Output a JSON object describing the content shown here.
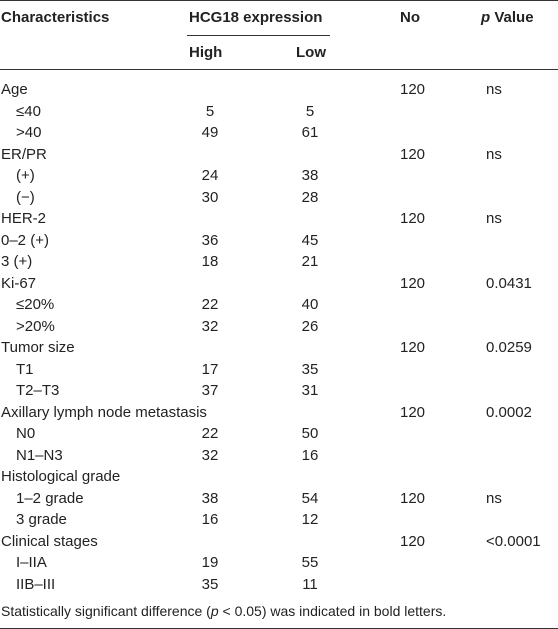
{
  "header": {
    "characteristics": "Characteristics",
    "group": "HCG18 expression",
    "high": "High",
    "low": "Low",
    "no": "No",
    "p_italic": "p",
    "p_rest": " Value"
  },
  "rows": [
    {
      "label": "Age",
      "sub": false,
      "high": "",
      "low": "",
      "no": "120",
      "p": "ns"
    },
    {
      "label": "≤40",
      "sub": true,
      "high": "5",
      "low": "5",
      "no": "",
      "p": ""
    },
    {
      "label": ">40",
      "sub": true,
      "high": "49",
      "low": "61",
      "no": "",
      "p": ""
    },
    {
      "label": "ER/PR",
      "sub": false,
      "high": "",
      "low": "",
      "no": "120",
      "p": "ns"
    },
    {
      "label": "(+)",
      "sub": true,
      "high": "24",
      "low": "38",
      "no": "",
      "p": ""
    },
    {
      "label": "(−)",
      "sub": true,
      "high": "30",
      "low": "28",
      "no": "",
      "p": ""
    },
    {
      "label": "HER-2",
      "sub": false,
      "high": "",
      "low": "",
      "no": "120",
      "p": "ns"
    },
    {
      "label": "0–2 (+)",
      "sub": false,
      "high": "36",
      "low": "45",
      "no": "",
      "p": ""
    },
    {
      "label": "3 (+)",
      "sub": false,
      "high": "18",
      "low": "21",
      "no": "",
      "p": ""
    },
    {
      "label": "Ki-67",
      "sub": false,
      "high": "",
      "low": "",
      "no": "120",
      "p": "0.0431"
    },
    {
      "label": "≤20%",
      "sub": true,
      "high": "22",
      "low": "40",
      "no": "",
      "p": ""
    },
    {
      "label": ">20%",
      "sub": true,
      "high": "32",
      "low": "26",
      "no": "",
      "p": ""
    },
    {
      "label": "Tumor size",
      "sub": false,
      "high": "",
      "low": "",
      "no": "120",
      "p": "0.0259"
    },
    {
      "label": "T1",
      "sub": true,
      "high": "17",
      "low": "35",
      "no": "",
      "p": ""
    },
    {
      "label": "T2–T3",
      "sub": true,
      "high": "37",
      "low": "31",
      "no": "",
      "p": ""
    },
    {
      "label": "Axillary lymph node metastasis",
      "sub": false,
      "high": "",
      "low": "",
      "no": "120",
      "p": "0.0002"
    },
    {
      "label": "N0",
      "sub": true,
      "high": "22",
      "low": "50",
      "no": "",
      "p": ""
    },
    {
      "label": "N1–N3",
      "sub": true,
      "high": "32",
      "low": "16",
      "no": "",
      "p": ""
    },
    {
      "label": "Histological grade",
      "sub": false,
      "high": "",
      "low": "",
      "no": "",
      "p": ""
    },
    {
      "label": "1–2 grade",
      "sub": true,
      "high": "38",
      "low": "54",
      "no": "120",
      "p": "ns"
    },
    {
      "label": "3 grade",
      "sub": true,
      "high": "16",
      "low": "12",
      "no": "",
      "p": ""
    },
    {
      "label": "Clinical stages",
      "sub": false,
      "high": "",
      "low": "",
      "no": "120",
      "p": "<0.0001"
    },
    {
      "label": "I–IIA",
      "sub": true,
      "high": "19",
      "low": "55",
      "no": "",
      "p": ""
    },
    {
      "label": "IIB–III",
      "sub": true,
      "high": "35",
      "low": "11",
      "no": "",
      "p": ""
    }
  ],
  "footnote": {
    "before": "Statistically significant difference (",
    "p": "p",
    "after": " < 0.05) was indicated in bold letters."
  }
}
